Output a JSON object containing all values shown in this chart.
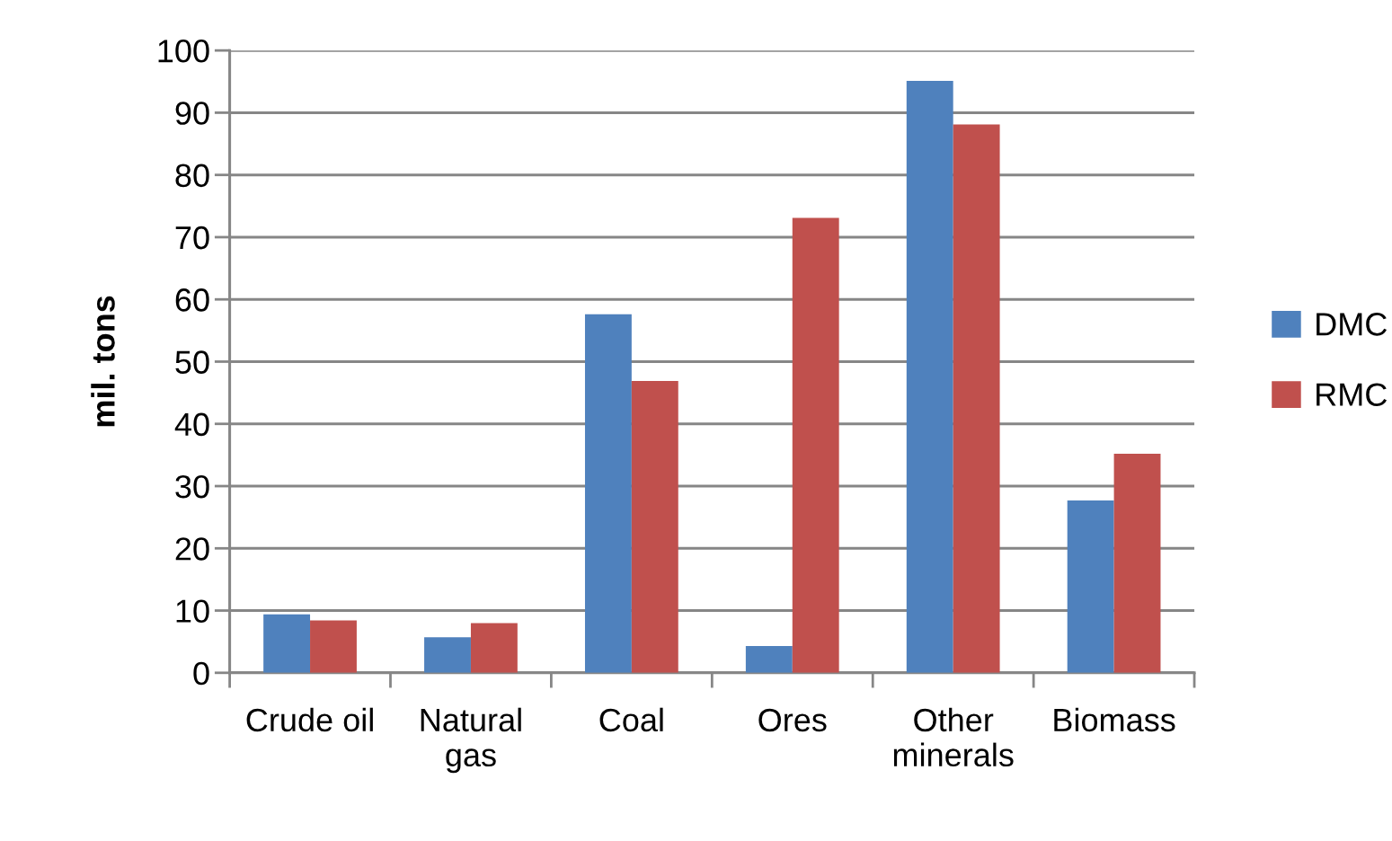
{
  "chart_data": {
    "type": "bar",
    "ylabel": "mil. tons",
    "categories": [
      "Crude oil",
      "Natural gas",
      "Coal",
      "Ores",
      "Other minerals",
      "Biomass"
    ],
    "series": [
      {
        "name": "DMC",
        "color": "#4f81bd",
        "values": [
          9.4,
          5.7,
          57.6,
          4.3,
          95.1,
          27.7
        ]
      },
      {
        "name": "RMC",
        "color": "#c0504d",
        "values": [
          8.4,
          8.0,
          46.9,
          73.1,
          88.1,
          35.2
        ]
      }
    ],
    "ylim": [
      0,
      100
    ],
    "yticks": [
      0,
      10,
      20,
      30,
      40,
      50,
      60,
      70,
      80,
      90,
      100
    ],
    "grid": "y",
    "legend": "right"
  }
}
